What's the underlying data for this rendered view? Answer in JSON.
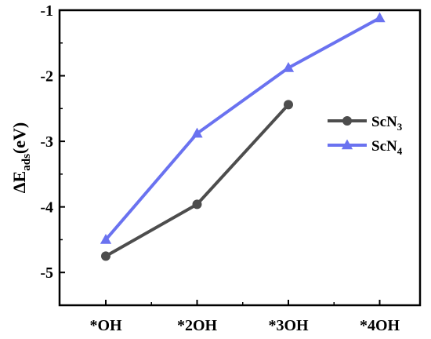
{
  "chart_data": {
    "type": "line",
    "categories": [
      "*OH",
      "*2OH",
      "*3OH",
      "*4OH"
    ],
    "series": [
      {
        "name": "ScN",
        "name_subscript": "3",
        "color": "#4d4d4d",
        "marker": "circle",
        "values": [
          -4.75,
          -3.96,
          -2.44,
          null
        ]
      },
      {
        "name": "ScN",
        "name_subscript": "4",
        "color": "#6a72f0",
        "marker": "triangle",
        "values": [
          -4.5,
          -2.88,
          -1.88,
          -1.12
        ]
      }
    ],
    "ylabel": "ΔE",
    "ylabel_subscript": "ads",
    "ylabel_suffix": "(eV)",
    "yticks": [
      "-1",
      "-2",
      "-3",
      "-4",
      "-5"
    ],
    "ylim": [
      -5.5,
      -1
    ],
    "legend_position": "right",
    "grid": false
  }
}
